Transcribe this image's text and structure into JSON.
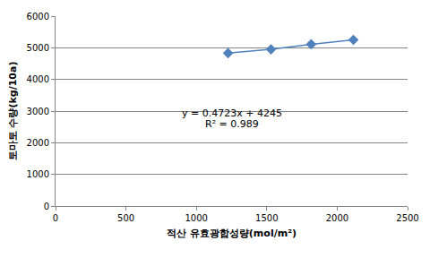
{
  "chart_data": {
    "type": "scatter",
    "x_label": "적산 유효광합성량(mol/m²)",
    "y_label": "토마토 수량(kg/10a)",
    "x": [
      1225,
      1530,
      1815,
      2115
    ],
    "values": [
      4830,
      4950,
      5110,
      5250
    ],
    "color": "#4F81BD",
    "marker": "diamond",
    "line_style": "solid",
    "annotations": [
      "y = 0.4723x + 4245",
      "R² = 0.989"
    ],
    "xlim": [
      0,
      2500
    ],
    "xticks": [
      0,
      500,
      1000,
      1500,
      2000,
      2500
    ],
    "ylim": [
      0,
      6000
    ],
    "yticks": [
      0,
      1000,
      2000,
      3000,
      4000,
      5000,
      6000
    ],
    "grid": true
  }
}
